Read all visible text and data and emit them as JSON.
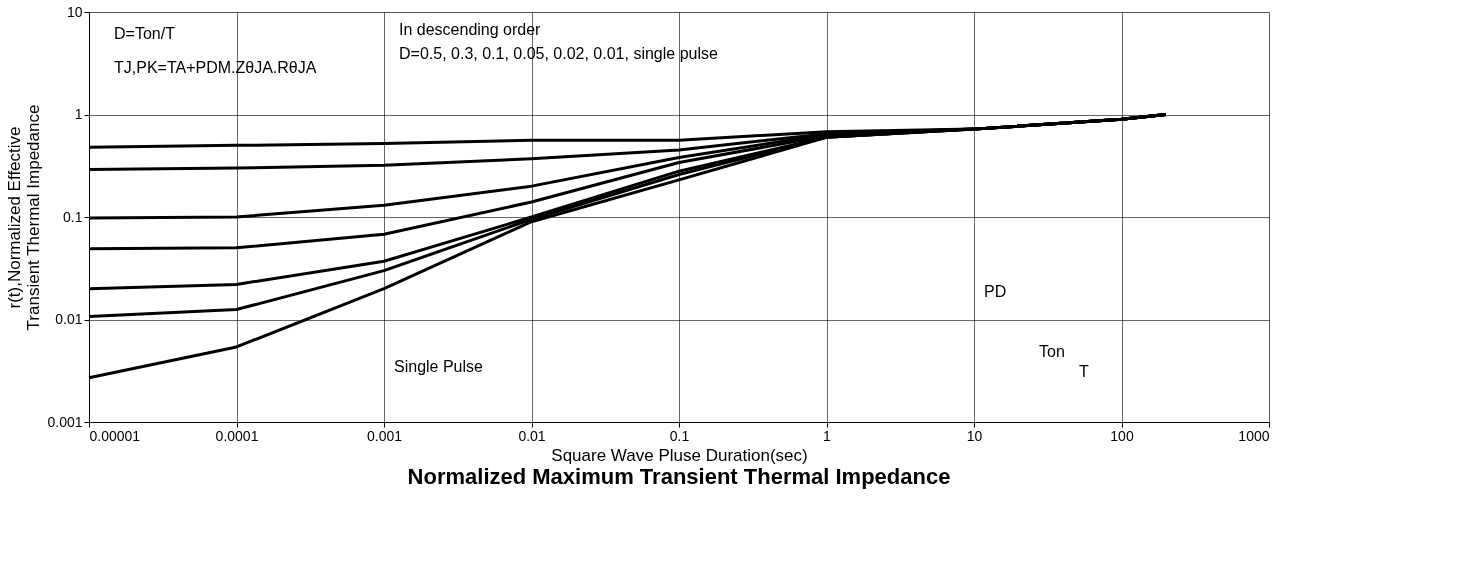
{
  "chart_data": {
    "type": "line",
    "title": "Normalized Maximum Transient Thermal Impedance",
    "xlabel": "Square Wave Pluse Duration(sec)",
    "ylabel": "r(t),Normalized Effective\nTransient Thermal Impedance",
    "log": "xy",
    "grid": true,
    "legend": false,
    "marker": "none",
    "line_style": "solid",
    "xlim": [
      1e-05,
      1000
    ],
    "ylim": [
      0.001,
      10
    ],
    "xticks": [
      {
        "value": 1e-05,
        "label": "0.00001"
      },
      {
        "value": 0.0001,
        "label": "0.0001"
      },
      {
        "value": 0.001,
        "label": "0.001"
      },
      {
        "value": 0.01,
        "label": "0.01"
      },
      {
        "value": 0.1,
        "label": "0.1"
      },
      1,
      10,
      100,
      {
        "value": 1000,
        "label": "1000"
      }
    ],
    "yticks": [
      {
        "value": 0.001,
        "label": "0.001"
      },
      {
        "value": 0.01,
        "label": "0.01"
      },
      {
        "value": 0.1,
        "label": "0.1"
      },
      1,
      10
    ],
    "x": [
      1e-05,
      0.0001,
      0.001,
      0.01,
      0.1,
      1,
      10,
      100,
      200
    ],
    "series": [
      {
        "color": "#000000",
        "values": [
          0.48,
          0.5,
          0.52,
          0.56,
          0.56,
          0.68,
          0.72,
          0.9,
          1.0
        ]
      },
      {
        "color": "#000000",
        "values": [
          0.29,
          0.3,
          0.32,
          0.37,
          0.45,
          0.65,
          0.72,
          0.9,
          1.0
        ]
      },
      {
        "color": "#000000",
        "values": [
          0.098,
          0.1,
          0.13,
          0.2,
          0.38,
          0.64,
          0.72,
          0.9,
          1.0
        ]
      },
      {
        "color": "#000000",
        "values": [
          0.049,
          0.05,
          0.068,
          0.14,
          0.34,
          0.62,
          0.72,
          0.9,
          1.0
        ]
      },
      {
        "color": "#000000",
        "values": [
          0.02,
          0.022,
          0.037,
          0.1,
          0.28,
          0.6,
          0.72,
          0.9,
          1.0
        ]
      },
      {
        "color": "#000000",
        "values": [
          0.0107,
          0.0125,
          0.03,
          0.095,
          0.26,
          0.6,
          0.72,
          0.9,
          1.0
        ]
      },
      {
        "color": "#000000",
        "values": [
          0.0027,
          0.0054,
          0.02,
          0.09,
          0.23,
          0.6,
          0.72,
          0.9,
          1.0
        ]
      }
    ],
    "annotations": [
      "D=Ton/T",
      "TJ,PK=TA+PDM.ZθJA.RθJA",
      "In descending order",
      "D=0.5, 0.3, 0.1, 0.05, 0.02, 0.01, single pulse",
      "Single Pulse",
      "PD",
      "Ton",
      "T"
    ]
  }
}
